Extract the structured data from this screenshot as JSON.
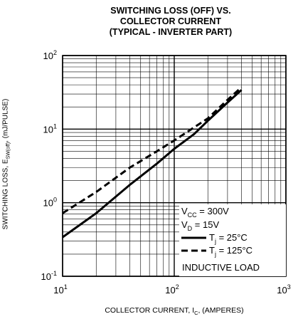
{
  "chart_data": {
    "type": "line",
    "title_lines": [
      "SWITCHING LOSS (OFF) VS.",
      "COLLECTOR CURRENT",
      "(TYPICAL - INVERTER PART)"
    ],
    "xlabel": "COLLECTOR CURRENT, I",
    "xlabel_sub": "C",
    "xlabel_tail": ", (AMPERES)",
    "ylabel": "SWITCHING LOSS, E",
    "ylabel_sub": "SW(off)",
    "ylabel_tail": ", (mJ/PULSE)",
    "x_scale": "log",
    "y_scale": "log",
    "xlim": [
      10,
      1000
    ],
    "ylim": [
      0.1,
      100
    ],
    "grid": true,
    "x_ticks": [
      {
        "base": "10",
        "exp": "1",
        "value": 10
      },
      {
        "base": "10",
        "exp": "2",
        "value": 100
      },
      {
        "base": "10",
        "exp": "3",
        "value": 1000
      }
    ],
    "y_ticks": [
      {
        "base": "10",
        "exp": "-1",
        "value": 0.1
      },
      {
        "base": "10",
        "exp": "0",
        "value": 1
      },
      {
        "base": "10",
        "exp": "1",
        "value": 10
      },
      {
        "base": "10",
        "exp": "2",
        "value": 100
      }
    ],
    "series": [
      {
        "name_main": "T",
        "name_sub": "j",
        "name_tail": " = 25°C",
        "style": "solid",
        "color": "#000000",
        "x": [
          10,
          20,
          40,
          70,
          100,
          150,
          200,
          300,
          400
        ],
        "y": [
          0.34,
          0.72,
          1.75,
          3.4,
          5.4,
          8.5,
          13,
          23,
          34
        ]
      },
      {
        "name_main": "T",
        "name_sub": "j",
        "name_tail": " = 125°C",
        "style": "dashed",
        "color": "#000000",
        "x": [
          10,
          20,
          40,
          70,
          100,
          150,
          200,
          300,
          400
        ],
        "y": [
          0.72,
          1.4,
          3.0,
          5.0,
          7.0,
          10.5,
          14,
          25,
          37
        ]
      }
    ],
    "legend": {
      "position": "bottom-right",
      "conditions": [
        {
          "main": "V",
          "sub": "CC",
          "tail": " = 300V"
        },
        {
          "main": "V",
          "sub": "D",
          "tail": " = 15V"
        }
      ],
      "footer": "INDUCTIVE LOAD"
    }
  }
}
